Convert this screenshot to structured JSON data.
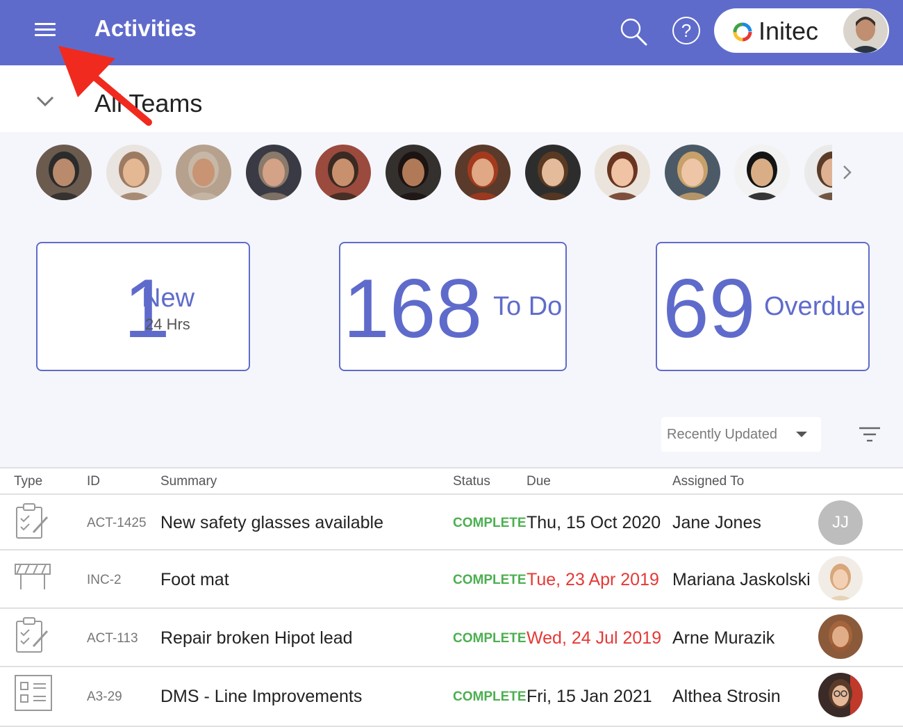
{
  "header": {
    "title": "Activities",
    "org_name": "Initec",
    "colors": {
      "bar": "#5f6bcb",
      "accent": "#5f6bcb",
      "complete": "#4caf50",
      "overdue": "#e53935"
    }
  },
  "team": {
    "title": "All Teams"
  },
  "people": [
    {
      "name": "person-1",
      "skin": "#b98a6c",
      "hair": "#2b2b2b",
      "bg": "#6b5a4e"
    },
    {
      "name": "person-2",
      "skin": "#e5b894",
      "hair": "#9c7b62",
      "bg": "#e9e4df"
    },
    {
      "name": "person-3",
      "skin": "#c89474",
      "hair": "#c7b7a6",
      "bg": "#b5a18e"
    },
    {
      "name": "person-4",
      "skin": "#d4a286",
      "hair": "#8a7a6b",
      "bg": "#3a3a44"
    },
    {
      "name": "person-5",
      "skin": "#c9906e",
      "hair": "#3a2a22",
      "bg": "#9b4a3e"
    },
    {
      "name": "person-6",
      "skin": "#b07a58",
      "hair": "#1c1412",
      "bg": "#34302e"
    },
    {
      "name": "person-7",
      "skin": "#e0a884",
      "hair": "#a33a1e",
      "bg": "#5a3a2a"
    },
    {
      "name": "person-8",
      "skin": "#e4bc9c",
      "hair": "#5a3a22",
      "bg": "#2d2d2d"
    },
    {
      "name": "person-9",
      "skin": "#efc3a4",
      "hair": "#6a3520",
      "bg": "#eae4dc"
    },
    {
      "name": "person-10",
      "skin": "#eec5a6",
      "hair": "#c7a06a",
      "bg": "#4b5a66"
    },
    {
      "name": "person-11",
      "skin": "#d9ae86",
      "hair": "#141414",
      "bg": "#f2f2f2"
    },
    {
      "name": "person-12",
      "skin": "#e0b294",
      "hair": "#5a3d28",
      "bg": "#eaeaea"
    }
  ],
  "stats": [
    {
      "count": "1",
      "label": "New",
      "sub": "24 Hrs"
    },
    {
      "count": "168",
      "label": "To Do",
      "sub": ""
    },
    {
      "count": "69",
      "label": "Overdue",
      "sub": ""
    }
  ],
  "sort": {
    "selected": "Recently Updated"
  },
  "table": {
    "columns": {
      "type": "Type",
      "id": "ID",
      "summary": "Summary",
      "status": "Status",
      "due": "Due",
      "assigned": "Assigned To"
    },
    "rows": [
      {
        "type_icon": "clipboard-check-icon",
        "id": "ACT-1425",
        "summary": "New safety glasses available",
        "status": "COMPLETE",
        "due": "Thu, 15 Oct 2020",
        "overdue": false,
        "assignee": "Jane Jones",
        "initials": "JJ"
      },
      {
        "type_icon": "barrier-icon",
        "id": "INC-2",
        "summary": "Foot mat",
        "status": "COMPLETE",
        "due": "Tue, 23 Apr 2019",
        "overdue": true,
        "assignee": "Mariana Jaskolski",
        "initials": ""
      },
      {
        "type_icon": "clipboard-check-icon",
        "id": "ACT-113",
        "summary": "Repair broken Hipot lead",
        "status": "COMPLETE",
        "due": "Wed, 24 Jul 2019",
        "overdue": true,
        "assignee": "Arne Murazik",
        "initials": ""
      },
      {
        "type_icon": "checklist-form-icon",
        "id": "A3-29",
        "summary": "DMS - Line Improvements",
        "status": "COMPLETE",
        "due": "Fri, 15 Jan 2021",
        "overdue": false,
        "assignee": "Althea Strosin",
        "initials": ""
      }
    ]
  }
}
